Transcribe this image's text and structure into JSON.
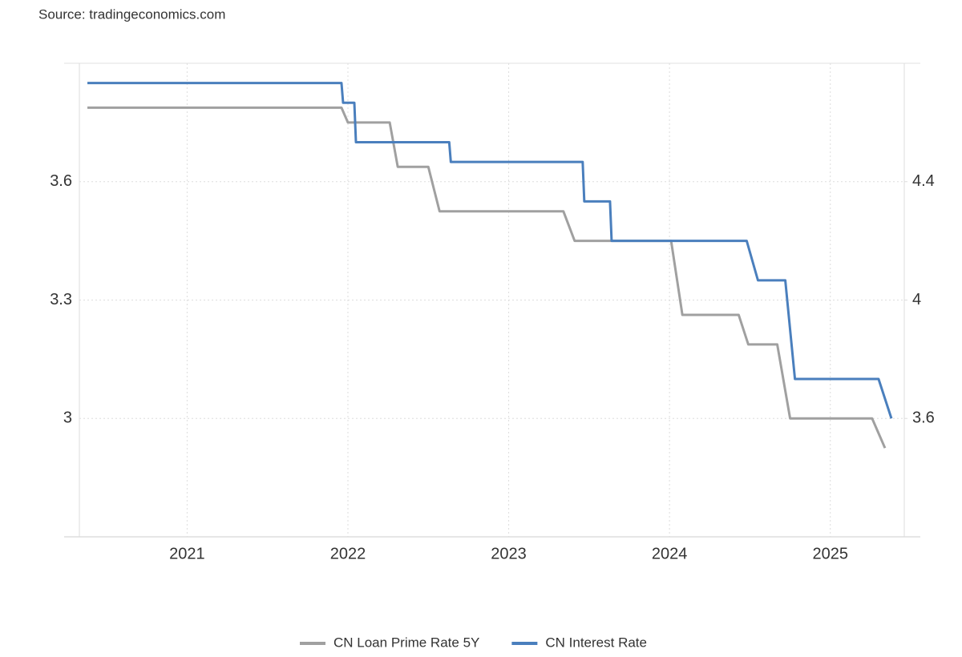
{
  "chart_data": {
    "type": "line",
    "source": "Source: tradingeconomics.com",
    "xlim": [
      2020.33,
      2025.46
    ],
    "xticks": [
      2021,
      2022,
      2023,
      2024,
      2025
    ],
    "ylim": [
      2.7,
      3.9
    ],
    "yticks": [
      3,
      3.3,
      3.6
    ],
    "y2lim": [
      3.2,
      4.8
    ],
    "y2ticks": [
      3.6,
      4,
      4.4
    ],
    "grid": true,
    "legend": "bottom",
    "series": [
      {
        "name": "CN Loan Prime Rate 5Y",
        "color": "#a0a0a0",
        "axis": "y2",
        "x": [
          2020.38,
          2021.96,
          2022.0,
          2022.26,
          2022.31,
          2022.5,
          2022.57,
          2023.34,
          2023.41,
          2024.01,
          2024.08,
          2024.43,
          2024.49,
          2024.67,
          2024.75,
          2025.26,
          2025.34
        ],
        "values": [
          4.65,
          4.65,
          4.6,
          4.6,
          4.45,
          4.45,
          4.3,
          4.3,
          4.2,
          4.2,
          3.95,
          3.95,
          3.85,
          3.85,
          3.6,
          3.6,
          3.5
        ]
      },
      {
        "name": "CN Interest Rate",
        "color": "#4a7fbd",
        "x": [
          2020.38,
          2021.96,
          2021.97,
          2022.04,
          2022.05,
          2022.63,
          2022.64,
          2023.46,
          2023.47,
          2023.63,
          2023.64,
          2024.48,
          2024.55,
          2024.72,
          2024.78,
          2025.3,
          2025.38
        ],
        "values": [
          3.85,
          3.85,
          3.8,
          3.8,
          3.7,
          3.7,
          3.65,
          3.65,
          3.55,
          3.55,
          3.45,
          3.45,
          3.35,
          3.35,
          3.1,
          3.1,
          3.0
        ]
      }
    ]
  }
}
